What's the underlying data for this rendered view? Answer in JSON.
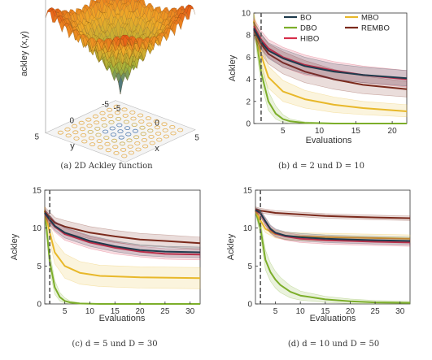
{
  "panels": {
    "a": {
      "caption": "(a) 2D Ackley function"
    },
    "b": {
      "caption": "(b) d = 2 und D = 10"
    },
    "c": {
      "caption": "(c) d = 5 und D = 30"
    },
    "d": {
      "caption": "(d) d = 10 und D = 50"
    }
  },
  "colors": {
    "BO": "#1f3b4d",
    "DBO": "#7cae2a",
    "HIBO": "#d62e4a",
    "MBO": "#e8b82a",
    "REMBO": "#7b2a1c"
  },
  "chart_data": [
    {
      "type": "surface",
      "panel": "a",
      "function": "ackley",
      "zlabel": "ackley (x,y)",
      "xlabel": "x",
      "ylabel": "y",
      "x_ticks": [
        "-5",
        "0",
        "5"
      ],
      "y_ticks": [
        "5",
        "0",
        "-5"
      ],
      "xlim": [
        -5,
        5
      ],
      "ylim": [
        -5,
        5
      ]
    },
    {
      "type": "line",
      "panel": "b",
      "xlabel": "Evaluations",
      "ylabel": "Ackley",
      "xlim": [
        1,
        22
      ],
      "ylim": [
        0,
        10
      ],
      "x_ticks": [
        "5",
        "10",
        "15",
        "20"
      ],
      "y_ticks": [
        "0",
        "2",
        "4",
        "6",
        "8",
        "10"
      ],
      "vline_x": 2,
      "legend": [
        "BO",
        "MBO",
        "DBO",
        "REMBO",
        "HIBO"
      ],
      "legend_position": "top-right",
      "series": [
        {
          "name": "BO",
          "x": [
            1,
            2,
            3,
            5,
            8,
            12,
            16,
            22
          ],
          "y": [
            8.6,
            7.4,
            6.6,
            5.9,
            5.2,
            4.7,
            4.4,
            4.1
          ],
          "lo": [
            8.0,
            6.7,
            5.9,
            5.1,
            4.5,
            4.0,
            3.7,
            3.4
          ],
          "hi": [
            9.2,
            8.1,
            7.3,
            6.7,
            6.0,
            5.4,
            5.1,
            4.8
          ]
        },
        {
          "name": "HIBO",
          "x": [
            1,
            2,
            3,
            5,
            8,
            12,
            16,
            22
          ],
          "y": [
            8.8,
            7.6,
            6.8,
            6.0,
            5.3,
            4.8,
            4.4,
            4.0
          ],
          "lo": [
            8.1,
            6.8,
            6.0,
            5.1,
            4.4,
            4.0,
            3.7,
            3.3
          ],
          "hi": [
            9.5,
            8.4,
            7.6,
            6.9,
            6.2,
            5.6,
            5.2,
            4.8
          ]
        },
        {
          "name": "REMBO",
          "x": [
            1,
            2,
            3,
            5,
            8,
            12,
            16,
            22
          ],
          "y": [
            8.5,
            7.2,
            6.3,
            5.5,
            4.7,
            4.0,
            3.5,
            3.1
          ],
          "lo": [
            7.8,
            6.3,
            5.4,
            4.5,
            3.7,
            3.1,
            2.7,
            2.4
          ],
          "hi": [
            9.2,
            8.1,
            7.2,
            6.5,
            5.7,
            4.9,
            4.3,
            3.8
          ]
        },
        {
          "name": "MBO",
          "x": [
            1,
            2,
            3,
            5,
            8,
            12,
            16,
            22
          ],
          "y": [
            9.3,
            6.2,
            4.2,
            2.9,
            2.2,
            1.7,
            1.4,
            1.1
          ],
          "lo": [
            8.6,
            5.0,
            3.2,
            2.0,
            1.4,
            1.0,
            0.8,
            0.6
          ],
          "hi": [
            10.0,
            7.4,
            5.2,
            3.9,
            3.0,
            2.4,
            2.0,
            1.7
          ]
        },
        {
          "name": "DBO",
          "x": [
            1,
            2,
            3,
            4,
            5,
            6,
            8,
            12,
            22
          ],
          "y": [
            9.2,
            4.6,
            2.0,
            0.9,
            0.4,
            0.2,
            0.05,
            0,
            0
          ],
          "lo": [
            8.5,
            3.6,
            1.2,
            0.4,
            0.1,
            0,
            0,
            0,
            0
          ],
          "hi": [
            9.9,
            5.6,
            2.9,
            1.6,
            0.8,
            0.4,
            0.15,
            0.05,
            0
          ]
        }
      ]
    },
    {
      "type": "line",
      "panel": "c",
      "xlabel": "Evaluations",
      "ylabel": "Ackley",
      "xlim": [
        1,
        32
      ],
      "ylim": [
        0,
        15
      ],
      "x_ticks": [
        "5",
        "10",
        "15",
        "20",
        "25",
        "30"
      ],
      "y_ticks": [
        "0",
        "5",
        "10",
        "15"
      ],
      "vline_x": 2,
      "series": [
        {
          "name": "REMBO",
          "x": [
            1,
            2,
            3,
            5,
            10,
            15,
            20,
            25,
            32
          ],
          "y": [
            12.2,
            11.4,
            10.7,
            10.2,
            9.4,
            8.9,
            8.5,
            8.3,
            8.0
          ],
          "lo": [
            11.6,
            10.7,
            10.0,
            9.4,
            8.6,
            8.1,
            7.7,
            7.5,
            7.2
          ],
          "hi": [
            12.8,
            12.1,
            11.4,
            11.0,
            10.2,
            9.7,
            9.3,
            9.1,
            8.8
          ]
        },
        {
          "name": "BO",
          "x": [
            1,
            2,
            3,
            5,
            10,
            15,
            20,
            25,
            32
          ],
          "y": [
            12.0,
            11.1,
            10.3,
            9.4,
            8.3,
            7.6,
            7.1,
            6.9,
            6.8
          ],
          "lo": [
            11.5,
            10.5,
            9.7,
            8.7,
            7.6,
            6.9,
            6.4,
            6.2,
            6.1
          ],
          "hi": [
            12.5,
            11.7,
            10.9,
            10.1,
            9.0,
            8.3,
            7.8,
            7.6,
            7.5
          ]
        },
        {
          "name": "HIBO",
          "x": [
            1,
            2,
            3,
            5,
            10,
            15,
            20,
            25,
            32
          ],
          "y": [
            11.9,
            11.0,
            10.2,
            9.2,
            8.1,
            7.4,
            6.9,
            6.6,
            6.5
          ],
          "lo": [
            11.3,
            10.3,
            9.5,
            8.4,
            7.3,
            6.6,
            6.2,
            5.9,
            5.8
          ],
          "hi": [
            12.5,
            11.7,
            10.9,
            10.0,
            8.9,
            8.2,
            7.6,
            7.3,
            7.2
          ]
        },
        {
          "name": "MBO",
          "x": [
            1,
            2,
            3,
            5,
            8,
            12,
            20,
            32
          ],
          "y": [
            12.3,
            9.4,
            6.8,
            5.0,
            4.1,
            3.7,
            3.5,
            3.4
          ],
          "lo": [
            11.8,
            8.2,
            5.3,
            3.4,
            2.6,
            2.3,
            2.1,
            2.0
          ],
          "hi": [
            12.8,
            10.6,
            8.3,
            6.6,
            5.6,
            5.1,
            4.9,
            4.8
          ]
        },
        {
          "name": "DBO",
          "x": [
            1,
            2,
            3,
            4,
            5,
            6,
            8,
            12,
            32
          ],
          "y": [
            12.3,
            5.6,
            2.2,
            0.9,
            0.4,
            0.2,
            0.05,
            0,
            0
          ],
          "lo": [
            11.8,
            4.4,
            1.3,
            0.4,
            0.1,
            0,
            0,
            0,
            0
          ],
          "hi": [
            12.8,
            6.8,
            3.1,
            1.5,
            0.8,
            0.4,
            0.15,
            0.05,
            0
          ]
        }
      ]
    },
    {
      "type": "line",
      "panel": "d",
      "xlabel": "Evaluations",
      "ylabel": "Ackley",
      "xlim": [
        1,
        32
      ],
      "ylim": [
        0,
        15
      ],
      "x_ticks": [
        "5",
        "10",
        "15",
        "20",
        "25",
        "30"
      ],
      "y_ticks": [
        "0",
        "5",
        "10",
        "15"
      ],
      "vline_x": 2,
      "series": [
        {
          "name": "REMBO",
          "x": [
            1,
            2,
            3,
            5,
            10,
            15,
            20,
            25,
            32
          ],
          "y": [
            12.5,
            12.3,
            12.2,
            12.0,
            11.8,
            11.6,
            11.5,
            11.4,
            11.3
          ],
          "lo": [
            12.2,
            12.0,
            11.9,
            11.7,
            11.5,
            11.3,
            11.2,
            11.1,
            11.0
          ],
          "hi": [
            12.8,
            12.6,
            12.5,
            12.3,
            12.1,
            11.9,
            11.8,
            11.7,
            11.6
          ]
        },
        {
          "name": "BO",
          "x": [
            1,
            2,
            3,
            4,
            5,
            7,
            10,
            15,
            20,
            25,
            32
          ],
          "y": [
            12.4,
            12.0,
            10.9,
            9.9,
            9.4,
            9.0,
            8.8,
            8.6,
            8.5,
            8.4,
            8.3
          ],
          "lo": [
            12.1,
            11.6,
            10.4,
            9.4,
            8.9,
            8.5,
            8.3,
            8.1,
            8.0,
            7.9,
            7.8
          ],
          "hi": [
            12.7,
            12.4,
            11.4,
            10.4,
            9.9,
            9.5,
            9.3,
            9.1,
            9.0,
            8.9,
            8.8
          ]
        },
        {
          "name": "HIBO",
          "x": [
            1,
            2,
            3,
            4,
            5,
            7,
            10,
            15,
            20,
            25,
            32
          ],
          "y": [
            12.3,
            11.9,
            10.8,
            9.8,
            9.3,
            8.9,
            8.6,
            8.4,
            8.3,
            8.2,
            8.1
          ],
          "lo": [
            12.0,
            11.5,
            10.3,
            9.3,
            8.8,
            8.4,
            8.1,
            7.9,
            7.8,
            7.7,
            7.6
          ],
          "hi": [
            12.6,
            12.3,
            11.3,
            10.3,
            9.8,
            9.4,
            9.1,
            8.9,
            8.8,
            8.7,
            8.6
          ]
        },
        {
          "name": "MBO",
          "x": [
            1,
            2,
            3,
            5,
            8,
            32
          ],
          "y": [
            12.4,
            11.0,
            9.9,
            9.2,
            8.9,
            8.6
          ],
          "lo": [
            12.1,
            10.5,
            9.4,
            8.7,
            8.4,
            8.1
          ],
          "hi": [
            12.7,
            11.5,
            10.4,
            9.7,
            9.4,
            9.1
          ]
        },
        {
          "name": "DBO",
          "x": [
            1,
            2,
            3,
            4,
            5,
            6,
            8,
            10,
            15,
            20,
            25,
            32
          ],
          "y": [
            12.3,
            10.0,
            5.8,
            4.2,
            3.2,
            2.5,
            1.6,
            1.1,
            0.6,
            0.35,
            0.2,
            0.15
          ],
          "lo": [
            12.0,
            9.0,
            4.5,
            3.0,
            2.1,
            1.5,
            0.8,
            0.5,
            0.2,
            0.05,
            0,
            0
          ],
          "hi": [
            12.6,
            11.0,
            7.1,
            5.4,
            4.3,
            3.5,
            2.4,
            1.7,
            1.0,
            0.65,
            0.45,
            0.35
          ]
        }
      ]
    }
  ]
}
